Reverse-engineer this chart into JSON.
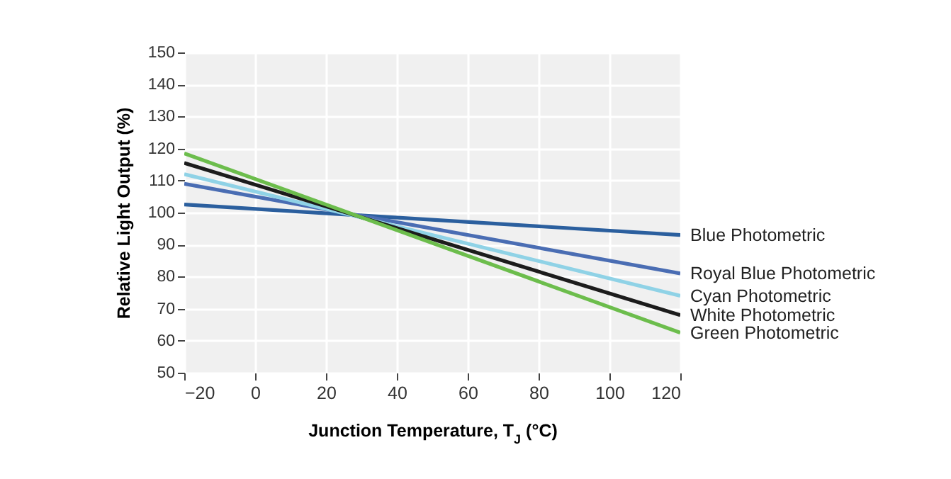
{
  "chart_data": {
    "type": "line",
    "xlabel": "Junction Temperature, T$_{J}$ (°C)",
    "ylabel": "Relative Light Output (%)",
    "x": [
      -20,
      120
    ],
    "series": [
      {
        "name": "Blue Photometric",
        "color": "#2b5f9e",
        "values": [
          102.5,
          93
        ]
      },
      {
        "name": "Royal Blue Photometric",
        "color": "#4a6db3",
        "values": [
          109,
          81
        ]
      },
      {
        "name": "Cyan Photometric",
        "color": "#8fd2e6",
        "values": [
          112,
          74
        ]
      },
      {
        "name": "White Photometric",
        "color": "#1c1c1c",
        "values": [
          115.5,
          68
        ]
      },
      {
        "name": "Green Photometric",
        "color": "#6cbd4c",
        "values": [
          118.5,
          62.5
        ]
      }
    ],
    "xlim": [
      -20,
      120
    ],
    "xticks": [
      {
        "value": -20,
        "label": "−20"
      },
      0,
      20,
      40,
      60,
      80,
      100,
      120
    ],
    "ylim": [
      50,
      150
    ],
    "yticks": [
      50,
      60,
      70,
      80,
      90,
      100,
      110,
      120,
      130,
      140,
      150
    ],
    "grid": true,
    "legend": "right",
    "marker": "none",
    "line_style": "solid"
  }
}
